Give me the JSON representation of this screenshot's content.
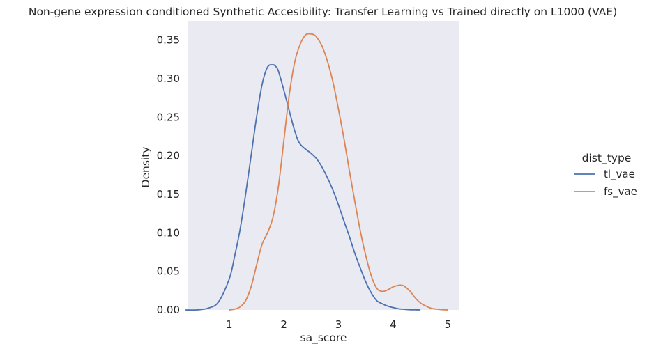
{
  "chart_data": {
    "type": "line",
    "title": "Non-gene expression conditioned Synthetic Accesibility: Transfer Learning vs Trained directly on L1000 (VAE)",
    "xlabel": "sa_score",
    "ylabel": "Density",
    "xlim": [
      0.25,
      5.2
    ],
    "ylim": [
      0,
      0.375
    ],
    "xticks": [
      1,
      2,
      3,
      4,
      5
    ],
    "yticks": [
      0.0,
      0.05,
      0.1,
      0.15,
      0.2,
      0.25,
      0.3,
      0.35
    ],
    "xtick_labels": [
      "1",
      "2",
      "3",
      "4",
      "5"
    ],
    "ytick_labels": [
      "0.00",
      "0.05",
      "0.10",
      "0.15",
      "0.20",
      "0.25",
      "0.30",
      "0.35"
    ],
    "grid": false,
    "background": "#eaeaf2",
    "legend": {
      "title": "dist_type",
      "placement": "right"
    },
    "series": [
      {
        "name": "tl_vae",
        "color": "#4c72b0",
        "x": [
          0.2,
          0.4,
          0.6,
          0.8,
          1.0,
          1.1,
          1.2,
          1.3,
          1.4,
          1.5,
          1.6,
          1.7,
          1.8,
          1.85,
          1.9,
          2.0,
          2.1,
          2.2,
          2.3,
          2.5,
          2.6,
          2.7,
          2.8,
          2.9,
          3.0,
          3.1,
          3.2,
          3.3,
          3.4,
          3.5,
          3.6,
          3.7,
          3.8,
          3.9,
          4.0,
          4.1,
          4.2,
          4.3,
          4.4,
          4.5
        ],
        "y": [
          0.0,
          0.0,
          0.002,
          0.01,
          0.04,
          0.07,
          0.105,
          0.15,
          0.2,
          0.25,
          0.292,
          0.315,
          0.318,
          0.316,
          0.31,
          0.285,
          0.258,
          0.232,
          0.215,
          0.203,
          0.196,
          0.185,
          0.171,
          0.155,
          0.136,
          0.115,
          0.095,
          0.073,
          0.054,
          0.036,
          0.022,
          0.012,
          0.008,
          0.005,
          0.003,
          0.0015,
          0.0008,
          0.0003,
          0.0001,
          0.0
        ]
      },
      {
        "name": "fs_vae",
        "color": "#dd8452",
        "x": [
          1.0,
          1.1,
          1.2,
          1.3,
          1.4,
          1.5,
          1.6,
          1.7,
          1.8,
          1.9,
          2.0,
          2.1,
          2.2,
          2.3,
          2.4,
          2.5,
          2.55,
          2.6,
          2.7,
          2.8,
          2.9,
          3.0,
          3.1,
          3.2,
          3.3,
          3.4,
          3.5,
          3.6,
          3.7,
          3.8,
          3.9,
          4.0,
          4.1,
          4.15,
          4.2,
          4.3,
          4.4,
          4.5,
          4.6,
          4.7,
          4.8,
          4.9,
          5.0
        ],
        "y": [
          0.0,
          0.001,
          0.004,
          0.012,
          0.03,
          0.058,
          0.085,
          0.1,
          0.12,
          0.16,
          0.22,
          0.28,
          0.322,
          0.345,
          0.357,
          0.358,
          0.357,
          0.354,
          0.342,
          0.322,
          0.295,
          0.26,
          0.222,
          0.18,
          0.14,
          0.102,
          0.07,
          0.044,
          0.028,
          0.024,
          0.026,
          0.03,
          0.032,
          0.032,
          0.031,
          0.025,
          0.016,
          0.009,
          0.005,
          0.002,
          0.001,
          0.0003,
          0.0
        ]
      }
    ]
  }
}
